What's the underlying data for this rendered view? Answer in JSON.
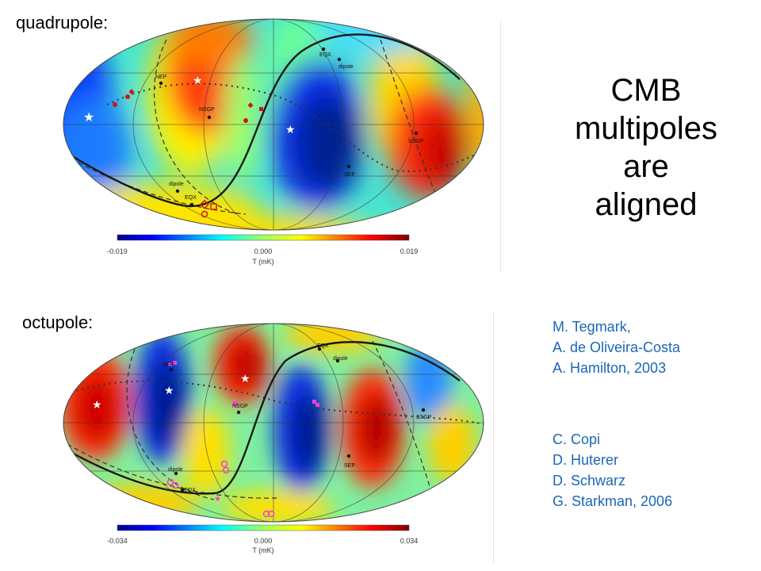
{
  "section_labels": {
    "quadrupole": "quadrupole:",
    "octupole": "octupole:"
  },
  "title_lines": [
    "CMB",
    "multipoles",
    "are",
    "aligned"
  ],
  "references": {
    "group1": [
      "M. Tegmark,",
      "A.  de Oliveira-Costa",
      "A.  Hamilton,  2003"
    ],
    "group2": [
      "C.  Copi",
      "D.  Huterer",
      "D.  Schwarz",
      "G.  Starkman, 2006"
    ]
  },
  "maps": {
    "quadrupole": {
      "colorbar_min": "-0.019",
      "colorbar_mid": "0.000",
      "colorbar_max": "0.019",
      "colorbar_unit": "T (mK)",
      "labels": {
        "nep": "NEP",
        "nsgp": "NSGP",
        "ssgp": "SSGP",
        "sep": "SEP",
        "eqx_top": "EQX",
        "eqx_bottom": "EQX",
        "dipole_top": "dipole",
        "dipole_bottom": "dipole"
      }
    },
    "octupole": {
      "colorbar_min": "-0.034",
      "colorbar_mid": "0.000",
      "colorbar_max": "0.034",
      "colorbar_unit": "T (mK)",
      "labels": {
        "nep": "NEP",
        "nsgp": "NSGP",
        "ssgp": "SSGP",
        "sep": "SEP",
        "eqx_top": "EQX",
        "eqx_bottom": "EQX",
        "dipole_top": "dipole",
        "dipole_bottom": "dipole"
      }
    }
  },
  "colors": {
    "reference_text": "#1a67b5",
    "hot": "#e8201a",
    "cold": "#1d3fd6"
  }
}
